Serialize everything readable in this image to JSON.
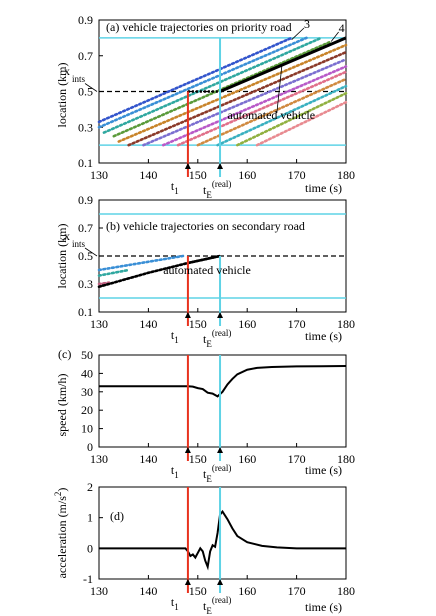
{
  "colors": {
    "cyan": "#5fd3e6",
    "red": "#e8321e",
    "black": "#000000",
    "traj_priority": [
      "#3355cc",
      "#3a8fd6",
      "#30a8a0",
      "#5a9a3a",
      "#c8842a",
      "#8b3a2a",
      "#7b6fd0",
      "#b85ac8",
      "#e0708a",
      "#d08a40",
      "#3ab0c0",
      "#90b040",
      "#e88a90"
    ],
    "traj_secondary": [
      "#3a8fd6",
      "#30a8a0",
      "#c06080"
    ]
  },
  "chart_data": [
    {
      "id": "a",
      "type": "line",
      "title": "(a) vehicle trajectories on priority road",
      "xlabel": "time (s)",
      "ylabel": "location (km)",
      "xlim": [
        130,
        180
      ],
      "ylim": [
        0.1,
        0.9
      ],
      "xticks": [
        "130",
        "140",
        "150",
        "160",
        "170",
        "180"
      ],
      "yticks": [
        "0.1",
        "0.3",
        "0.5",
        "0.7",
        "0.9"
      ],
      "x_ints_label": "x",
      "x_ints_sub": "ints",
      "x_ints_value": 0.5,
      "boundaries": [
        0.2,
        0.8
      ],
      "t1": 148,
      "tE": 154.5,
      "t1_label": "t",
      "t1_sub": "1",
      "tE_label": "t",
      "tE_sub": "E",
      "tE_sup": "(real)",
      "labels": {
        "three": "3",
        "four": "4",
        "automated": "automated vehicle"
      },
      "automated": {
        "x": [
          154.5,
          180
        ],
        "y": [
          0.5,
          0.8
        ]
      },
      "automated_pre": {
        "x": [
          148,
          154.5
        ],
        "y": [
          0.5,
          0.5
        ]
      },
      "dotted_series": [
        {
          "x": [
            130,
            169
          ],
          "y": [
            0.33,
            0.8
          ]
        },
        {
          "x": [
            130,
            172
          ],
          "y": [
            0.3,
            0.8
          ]
        },
        {
          "x": [
            131,
            175
          ],
          "y": [
            0.27,
            0.8
          ]
        },
        {
          "x": [
            133,
            177
          ],
          "y": [
            0.25,
            0.78
          ]
        },
        {
          "x": [
            134,
            180
          ],
          "y": [
            0.22,
            0.76
          ]
        },
        {
          "x": [
            136,
            180
          ],
          "y": [
            0.2,
            0.72
          ]
        },
        {
          "x": [
            139,
            180
          ],
          "y": [
            0.2,
            0.68
          ]
        },
        {
          "x": [
            143,
            180
          ],
          "y": [
            0.2,
            0.64
          ]
        },
        {
          "x": [
            146,
            180
          ],
          "y": [
            0.2,
            0.61
          ]
        },
        {
          "x": [
            150,
            180
          ],
          "y": [
            0.2,
            0.57
          ]
        },
        {
          "x": [
            154,
            180
          ],
          "y": [
            0.2,
            0.53
          ]
        },
        {
          "x": [
            158,
            180
          ],
          "y": [
            0.2,
            0.49
          ]
        },
        {
          "x": [
            162,
            180
          ],
          "y": [
            0.2,
            0.44
          ]
        }
      ]
    },
    {
      "id": "b",
      "type": "line",
      "title": "(b) vehicle trajectories on secondary road",
      "xlabel": "time (s)",
      "ylabel": "location (km)",
      "xlim": [
        130,
        180
      ],
      "ylim": [
        0.1,
        0.9
      ],
      "xticks": [
        "130",
        "140",
        "150",
        "160",
        "170",
        "180"
      ],
      "yticks": [
        "0.1",
        "0.3",
        "0.5",
        "0.7",
        "0.9"
      ],
      "x_ints_label": "x",
      "x_ints_sub": "ints",
      "x_ints_value": 0.5,
      "boundaries": [
        0.2,
        0.8
      ],
      "t1": 148,
      "tE": 154.5,
      "t1_label": "t",
      "t1_sub": "1",
      "tE_label": "t",
      "tE_sub": "E",
      "tE_sup": "(real)",
      "labels": {
        "automated": "automated vehicle"
      },
      "automated": {
        "x": [
          130,
          140,
          148,
          154.5
        ],
        "y": [
          0.28,
          0.38,
          0.45,
          0.5
        ]
      },
      "dotted_series": [
        {
          "x": [
            130,
            147
          ],
          "y": [
            0.4,
            0.5
          ]
        },
        {
          "x": [
            130,
            136
          ],
          "y": [
            0.36,
            0.4
          ]
        },
        {
          "x": [
            130,
            132
          ],
          "y": [
            0.3,
            0.31
          ]
        }
      ]
    },
    {
      "id": "c",
      "type": "line",
      "panel_label": "(c)",
      "xlabel": "time (s)",
      "ylabel": "speed (km/h)",
      "xlim": [
        130,
        180
      ],
      "ylim": [
        0,
        50
      ],
      "xticks": [
        "130",
        "140",
        "150",
        "160",
        "170",
        "180"
      ],
      "yticks": [
        "0",
        "10",
        "20",
        "30",
        "40",
        "50"
      ],
      "t1": 148,
      "tE": 154.5,
      "t1_label": "t",
      "t1_sub": "1",
      "tE_label": "t",
      "tE_sub": "E",
      "tE_sup": "(real)",
      "series": [
        {
          "x": [
            130,
            148,
            149,
            150,
            151,
            152,
            153,
            154,
            155,
            156,
            157,
            158,
            160,
            162,
            165,
            170,
            175,
            180
          ],
          "y": [
            33,
            33,
            32.8,
            32,
            31.5,
            29.5,
            29,
            27.5,
            30,
            34,
            37,
            39.5,
            42,
            43,
            43.5,
            43.8,
            43.9,
            44
          ]
        }
      ]
    },
    {
      "id": "d",
      "type": "line",
      "panel_label": "(d)",
      "xlabel": "time (s)",
      "ylabel": "acceleration (m/s",
      "ylabel_sup": "2",
      "ylabel_end": ")",
      "xlim": [
        130,
        180
      ],
      "ylim": [
        -1,
        2
      ],
      "xticks": [
        "130",
        "140",
        "150",
        "160",
        "170",
        "180"
      ],
      "yticks": [
        "-1",
        "0",
        "1",
        "2"
      ],
      "t1": 148,
      "tE": 154.5,
      "t1_label": "t",
      "t1_sub": "1",
      "tE_label": "t",
      "tE_sub": "E",
      "tE_sup": "(real)",
      "series": [
        {
          "x": [
            130,
            147.5,
            148,
            148.5,
            149,
            149.5,
            150,
            150.5,
            151,
            151.5,
            152,
            152.5,
            153,
            153.5,
            154,
            154.5,
            155,
            156,
            157,
            158,
            160,
            163,
            166,
            170,
            175,
            180
          ],
          "y": [
            0,
            0,
            -0.1,
            -0.25,
            -0.2,
            -0.3,
            -0.15,
            0,
            -0.1,
            -0.4,
            -0.6,
            -0.1,
            0.1,
            0.05,
            0.5,
            1.1,
            1.2,
            0.95,
            0.65,
            0.4,
            0.2,
            0.08,
            0.03,
            0,
            0,
            0
          ]
        }
      ]
    }
  ]
}
